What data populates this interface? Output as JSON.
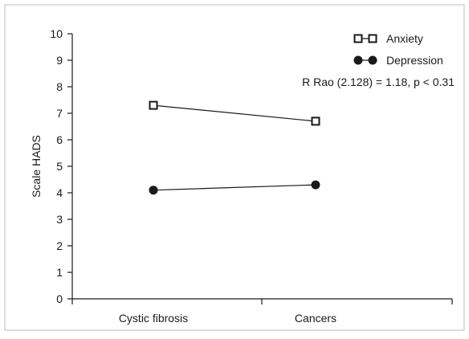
{
  "chart_data": {
    "type": "line",
    "title": "",
    "xlabel": "",
    "ylabel": "Scale HADS",
    "categories": [
      "Cystic fibrosis",
      "Cancers"
    ],
    "ylim": [
      0,
      10
    ],
    "yticks": [
      0,
      1,
      2,
      3,
      4,
      5,
      6,
      7,
      8,
      9,
      10
    ],
    "grid": false,
    "legend_position": "top-right",
    "series": [
      {
        "name": "Anxiety",
        "values": [
          7.3,
          6.7
        ],
        "marker": "open-square",
        "color": "#1a1a1a"
      },
      {
        "name": "Depression",
        "values": [
          4.1,
          4.3
        ],
        "marker": "filled-circle",
        "color": "#1a1a1a"
      }
    ],
    "annotation": "R Rao (2.128) = 1.18, p < 0.31"
  }
}
